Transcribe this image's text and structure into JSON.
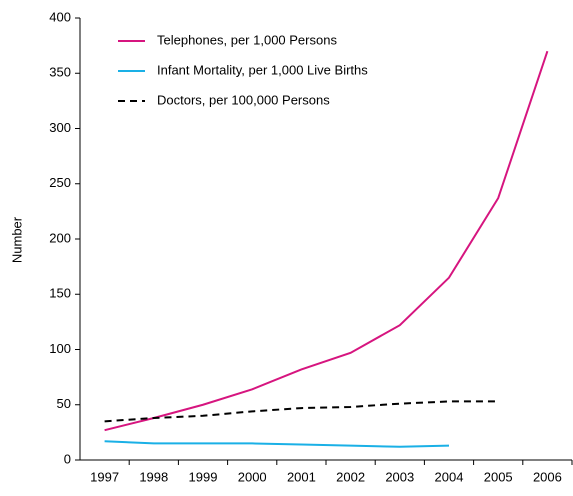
{
  "chart_data": {
    "type": "line",
    "y_label": "Number",
    "categories": [
      "1997",
      "1998",
      "1999",
      "2000",
      "2001",
      "2002",
      "2003",
      "2004",
      "2005",
      "2006"
    ],
    "series": [
      {
        "name": "Telephones, per 1,000 Persons",
        "color": "#d6157f",
        "dash": false,
        "values": [
          27,
          38,
          50,
          64,
          82,
          97,
          122,
          165,
          237,
          370
        ]
      },
      {
        "name": "Infant Mortality, per 1,000 Live Births",
        "color": "#1ab0e6",
        "dash": false,
        "values": [
          17,
          15,
          15,
          15,
          14,
          13,
          12,
          13,
          null,
          null
        ]
      },
      {
        "name": "Doctors, per 100,000 Persons",
        "color": "#000000",
        "dash": true,
        "values": [
          35,
          38,
          40,
          44,
          47,
          48,
          51,
          53,
          53,
          null
        ]
      }
    ],
    "ylim": [
      0,
      400
    ],
    "yticks": [
      0,
      50,
      100,
      150,
      200,
      250,
      300,
      350,
      400
    ],
    "grid": false,
    "legend": "top-left"
  }
}
